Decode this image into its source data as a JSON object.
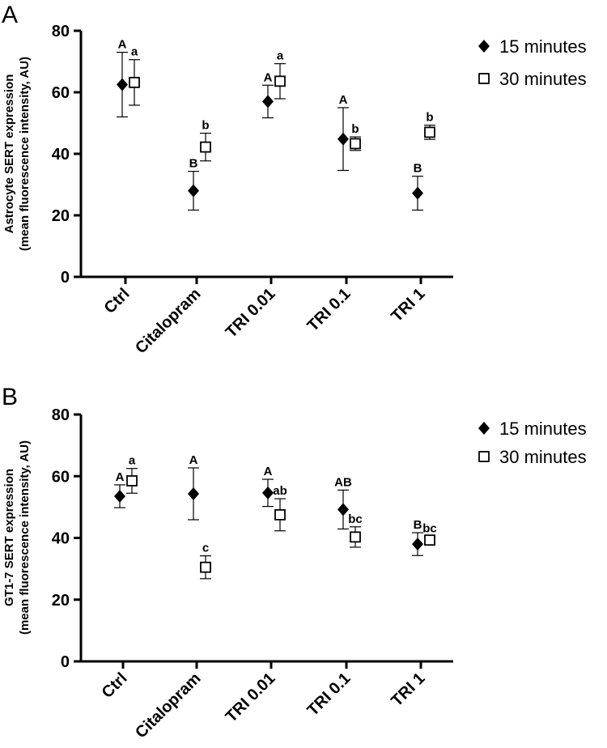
{
  "chart_data": [
    {
      "panel": "A",
      "type": "scatter",
      "ylabel_lines": [
        "Astrocyte SERT expression",
        "(mean fluorescence intensity, AU)"
      ],
      "xlabel": "",
      "ylim": [
        0,
        80
      ],
      "yticks": [
        0,
        20,
        40,
        60,
        80
      ],
      "categories": [
        "Ctrl",
        "Citalopram",
        "TRI 0.01",
        "TRI 0.1",
        "TRI 1"
      ],
      "legend_position": "top-right",
      "series": [
        {
          "name": "15 minutes",
          "marker": "filled-diamond",
          "values": [
            62.5,
            28,
            57,
            44.8,
            27.2
          ],
          "errors": [
            10.5,
            6.3,
            5.3,
            10.2,
            5.5
          ],
          "labels": [
            "A",
            "B",
            "A",
            "A",
            "B"
          ]
        },
        {
          "name": "30 minutes",
          "marker": "open-square",
          "values": [
            63.2,
            42.2,
            63.6,
            43.3,
            47
          ],
          "errors": [
            7.4,
            4.5,
            5.7,
            2.2,
            2.3
          ],
          "labels": [
            "a",
            "b",
            "a",
            "b",
            "b"
          ]
        }
      ]
    },
    {
      "panel": "B",
      "type": "scatter",
      "ylabel_lines": [
        "GT1-7 SERT expression",
        "(mean fluorescence intensity, AU)"
      ],
      "xlabel": "",
      "ylim": [
        0,
        80
      ],
      "yticks": [
        0,
        20,
        40,
        60,
        80
      ],
      "categories": [
        "Ctrl",
        "Citalopram",
        "TRI 0.01",
        "TRI 0.1",
        "TRI 1"
      ],
      "legend_position": "top-right",
      "series": [
        {
          "name": "15 minutes",
          "marker": "filled-diamond",
          "values": [
            53.5,
            54.3,
            54.6,
            49.2,
            38
          ],
          "errors": [
            3.7,
            8.4,
            4.4,
            6.3,
            3.7
          ],
          "labels": [
            "A",
            "A",
            "A",
            "AB",
            "B"
          ]
        },
        {
          "name": "30 minutes",
          "marker": "open-square",
          "values": [
            58.5,
            30.5,
            47.5,
            40.3,
            39.3
          ],
          "errors": [
            4,
            3.7,
            5.2,
            3.3,
            1.2
          ],
          "labels": [
            "a",
            "c",
            "ab",
            "bc",
            "bc"
          ]
        }
      ]
    }
  ]
}
